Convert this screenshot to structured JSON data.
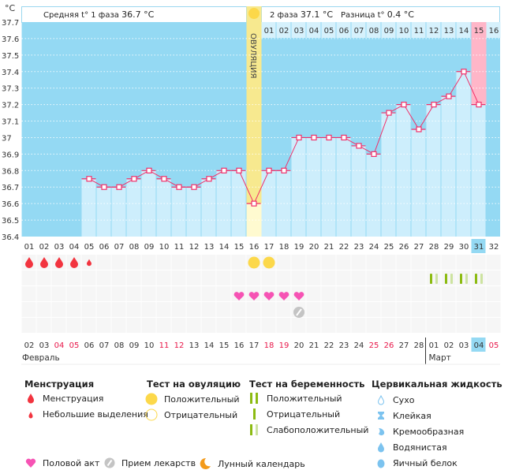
{
  "header": {
    "unit": "°C",
    "phase1_label": "Средняя t° 1 фаза",
    "phase1_value": "36.7 °C",
    "phase2_label": "2 фаза",
    "phase2_value": "37.1 °C",
    "diff_label": "Разница t°",
    "diff_value": "0.4 °C",
    "ovulation_label": "ОВУЛЯЦИЯ"
  },
  "chart_data": {
    "type": "bar",
    "ylabel": "°C",
    "ylim": [
      36.4,
      37.7
    ],
    "yticks": [
      "37.7",
      "37.6",
      "37.5",
      "37.4",
      "37.3",
      "37.2",
      "37.1",
      "37",
      "36.9",
      "36.8",
      "36.7",
      "36.6",
      "36.5",
      "36.4"
    ],
    "grid": true,
    "cycle_days": [
      "01",
      "02",
      "03",
      "04",
      "05",
      "06",
      "07",
      "08",
      "09",
      "10",
      "11",
      "12",
      "13",
      "14",
      "15",
      "16",
      "17",
      "18",
      "19",
      "20",
      "21",
      "22",
      "23",
      "24",
      "25",
      "26",
      "27",
      "28",
      "29",
      "30",
      "31",
      "32"
    ],
    "temperatures": [
      null,
      null,
      null,
      null,
      36.75,
      36.7,
      36.7,
      36.75,
      36.8,
      36.75,
      36.7,
      36.7,
      36.75,
      36.8,
      36.8,
      36.6,
      36.8,
      36.8,
      37.0,
      37.0,
      37.0,
      37.0,
      36.95,
      36.9,
      37.15,
      37.2,
      37.05,
      37.2,
      37.25,
      37.4,
      37.2,
      null
    ],
    "ovulation_day": 16,
    "current_day": 31,
    "phase2_days": [
      "01",
      "02",
      "03",
      "04",
      "05",
      "06",
      "07",
      "08",
      "09",
      "10",
      "11",
      "12",
      "13",
      "14",
      "15",
      "16"
    ],
    "phase2_highlight": "15",
    "dates": [
      "02",
      "03",
      "04",
      "05",
      "06",
      "07",
      "08",
      "09",
      "10",
      "11",
      "12",
      "13",
      "14",
      "15",
      "16",
      "17",
      "18",
      "19",
      "20",
      "21",
      "22",
      "23",
      "24",
      "25",
      "26",
      "27",
      "28",
      "01",
      "02",
      "03",
      "04",
      "05"
    ],
    "weekend_dates_idx": [
      2,
      3,
      9,
      10,
      16,
      17,
      23,
      24,
      31
    ],
    "months": [
      "Февраль",
      "Март"
    ],
    "menstruation": {
      "heavy": [
        1,
        2,
        3,
        4
      ],
      "light": [
        5
      ]
    },
    "ovulation_test_positive": [
      15,
      16
    ],
    "pregnancy_test_weak": [
      28,
      29,
      30,
      31
    ],
    "intercourse": [
      14,
      15,
      16,
      17,
      18
    ],
    "medication": [
      18
    ]
  },
  "colors": {
    "bg": "#94d9f3",
    "bar": "#cdeefc",
    "line": "#f0306a",
    "ovulation": "#f7e98f",
    "current": "#ffb6c8",
    "blood": "#f2343f",
    "sun": "#fcd84a",
    "heart": "#f653b4",
    "test": "#8cbb12",
    "test_weak": "#cde3a0",
    "pill": "#c4c4c4",
    "moon": "#f39a1a",
    "fluid": "#7cc3ef"
  },
  "legend": {
    "menstruation": {
      "title": "Менструация",
      "items": [
        "Менструация",
        "Небольшие выделения"
      ]
    },
    "ovulation_test": {
      "title": "Тест на овуляцию",
      "items": [
        "Положительный",
        "Отрицательный"
      ]
    },
    "pregnancy_test": {
      "title": "Тест на беременность",
      "items": [
        "Положительный",
        "Отрицательный",
        "Слабоположительный"
      ]
    },
    "cervical": {
      "title": "Цервикальная жидкость",
      "items": [
        "Сухо",
        "Клейкая",
        "Кремообразная",
        "Водянистая",
        "Яичный белок"
      ]
    },
    "other": [
      "Половой акт",
      "Прием лекарств",
      "Лунный календарь"
    ]
  }
}
